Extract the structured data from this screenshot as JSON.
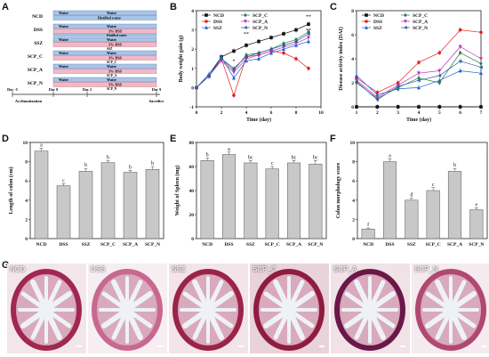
{
  "panels": {
    "A": "A",
    "B": "B",
    "C": "C",
    "D": "D",
    "E": "E",
    "F": "F",
    "G": "G"
  },
  "panelA": {
    "groups": [
      {
        "name": "NCD",
        "top": "Water",
        "bottom": "Distilled water",
        "topColor": "#a9c4e8",
        "bottomColor": "#a9c4e8"
      },
      {
        "name": "DSS",
        "top": "Water",
        "bottom": "3% DSS",
        "bottom2": "Distilled water",
        "topColor": "#a9c4e8",
        "bottomColor": "#f2b8c6"
      },
      {
        "name": "SSZ",
        "top": "Water",
        "bottom": "3% DSS",
        "bottom2": "SSZ",
        "topColor": "#a9c4e8",
        "bottomColor": "#f2b8c6"
      },
      {
        "name": "SCP_C",
        "top": "Water",
        "bottom": "3% DSS",
        "bottom2": "SCP_C",
        "topColor": "#a9c4e8",
        "bottomColor": "#f2b8c6"
      },
      {
        "name": "SCP_A",
        "top": "Water",
        "bottom": "3% DSS",
        "bottom2": "SCP_A",
        "topColor": "#a9c4e8",
        "bottomColor": "#f2b8c6"
      },
      {
        "name": "SCP_N",
        "top": "Water",
        "bottom": "3% DSS",
        "bottom2": "SCP_N",
        "topColor": "#a9c4e8",
        "bottomColor": "#f2b8c6"
      }
    ],
    "timeline": {
      "day_start": "Day -5",
      "day0": "Day 0",
      "day2": "Day 2",
      "day9": "Day 9",
      "acclimatization": "Acclimatization",
      "sacrifice": "Sacrifice"
    }
  },
  "chart_data": [
    {
      "panel": "B",
      "type": "line",
      "xlabel": "Time (day)",
      "ylabel": "Body weight gain (g)",
      "xlim": [
        0,
        10
      ],
      "ylim": [
        -1,
        4
      ],
      "xticks": [
        0,
        2,
        4,
        6,
        8,
        10
      ],
      "yticks": [
        -1,
        0,
        1,
        2,
        3,
        4
      ],
      "x": [
        0,
        1,
        2,
        3,
        4,
        5,
        6,
        7,
        8,
        9
      ],
      "series": [
        {
          "name": "NCD",
          "color": "#111111",
          "marker": "square",
          "values": [
            0,
            0.6,
            1.6,
            1.9,
            2.2,
            2.4,
            2.6,
            2.8,
            3.0,
            3.3
          ]
        },
        {
          "name": "DSS",
          "color": "#e02020",
          "marker": "circle",
          "values": [
            0,
            0.6,
            1.5,
            -0.4,
            1.6,
            1.7,
            1.9,
            1.8,
            1.5,
            1.0
          ]
        },
        {
          "name": "SSZ",
          "color": "#2060d0",
          "marker": "triangle",
          "values": [
            0,
            0.7,
            1.6,
            0.5,
            1.4,
            1.5,
            1.8,
            2.0,
            2.2,
            2.4
          ]
        },
        {
          "name": "SCP_C",
          "color": "#208040",
          "marker": "diamond",
          "values": [
            0,
            0.6,
            1.5,
            0.9,
            1.7,
            1.8,
            2.0,
            2.3,
            2.5,
            2.9
          ]
        },
        {
          "name": "SCP_A",
          "color": "#c030c0",
          "marker": "triangle-down",
          "values": [
            0,
            0.6,
            1.4,
            0.8,
            1.5,
            1.7,
            1.9,
            2.1,
            2.3,
            2.6
          ]
        },
        {
          "name": "SCP_N",
          "color": "#3060a0",
          "marker": "triangle-left",
          "values": [
            0,
            0.6,
            1.5,
            1.0,
            1.6,
            1.8,
            2.0,
            2.2,
            2.4,
            2.8
          ]
        }
      ],
      "annotations": [
        "**",
        "*",
        "**",
        "**"
      ]
    },
    {
      "panel": "C",
      "type": "line",
      "xlabel": "Time (day)",
      "ylabel": "Disease activity index (DAI)",
      "xlim": [
        1,
        7
      ],
      "ylim": [
        0,
        8
      ],
      "xticks": [
        1,
        2,
        3,
        4,
        5,
        6,
        7
      ],
      "yticks": [
        0,
        2,
        4,
        6,
        8
      ],
      "x": [
        1,
        2,
        3,
        4,
        5,
        6,
        7
      ],
      "series": [
        {
          "name": "NCD",
          "color": "#111111",
          "marker": "square",
          "values": [
            0,
            0,
            0,
            0,
            0,
            0,
            0
          ]
        },
        {
          "name": "DSS",
          "color": "#e02020",
          "marker": "circle",
          "values": [
            2.4,
            1.2,
            2.0,
            3.7,
            4.5,
            6.4,
            6.2
          ]
        },
        {
          "name": "SSZ",
          "color": "#2060d0",
          "marker": "triangle",
          "values": [
            2.6,
            1.0,
            1.5,
            1.6,
            2.2,
            3.0,
            2.8
          ]
        },
        {
          "name": "SCP_C",
          "color": "#208040",
          "marker": "diamond",
          "values": [
            2.0,
            0.7,
            1.6,
            2.4,
            2.0,
            4.5,
            3.6
          ]
        },
        {
          "name": "SCP_A",
          "color": "#c030c0",
          "marker": "triangle-down",
          "values": [
            2.2,
            0.8,
            1.8,
            2.8,
            3.0,
            5.0,
            4.0
          ]
        },
        {
          "name": "SCP_N",
          "color": "#3060a0",
          "marker": "triangle-left",
          "values": [
            2.1,
            0.6,
            1.7,
            2.2,
            2.6,
            3.8,
            3.3
          ]
        }
      ]
    },
    {
      "panel": "D",
      "type": "bar",
      "ylabel": "Length of colon (cm)",
      "ylim": [
        0,
        10
      ],
      "yticks": [
        0,
        2,
        4,
        6,
        8,
        10
      ],
      "categories": [
        "NCD",
        "DSS",
        "SSZ",
        "SCP_C",
        "SCP_A",
        "SCP_N"
      ],
      "values": [
        9.1,
        5.5,
        7.0,
        7.9,
        6.9,
        7.2
      ],
      "errors": [
        0.3,
        0.2,
        0.3,
        0.2,
        0.2,
        0.3
      ],
      "letters": [
        "a",
        "c",
        "b",
        "b",
        "b",
        "b"
      ]
    },
    {
      "panel": "E",
      "type": "bar",
      "ylabel": "Weight of Spleen (mg)",
      "ylim": [
        0,
        80
      ],
      "yticks": [
        0,
        20,
        40,
        60,
        80
      ],
      "categories": [
        "NCD",
        "DSS",
        "SSZ",
        "SCP_C",
        "SCP_A",
        "SCP_N"
      ],
      "values": [
        65,
        70,
        63,
        58,
        63,
        62
      ],
      "errors": [
        2,
        2,
        2,
        2,
        2,
        3
      ],
      "letters": [
        "b",
        "a",
        "bc",
        "c",
        "bc",
        "bc"
      ]
    },
    {
      "panel": "F",
      "type": "bar",
      "ylabel": "Colon morphology score",
      "ylim": [
        0,
        10
      ],
      "yticks": [
        0,
        2,
        4,
        6,
        8,
        10
      ],
      "categories": [
        "NCD",
        "DSS",
        "SSZ",
        "SCP_C",
        "SCP_A",
        "SCP_N"
      ],
      "values": [
        1.0,
        8.0,
        4.0,
        5.0,
        7.0,
        3.0
      ],
      "errors": [
        0.1,
        0.3,
        0.2,
        0.3,
        0.3,
        0.2
      ],
      "letters": [
        "f",
        "a",
        "d",
        "c",
        "b",
        "e"
      ]
    }
  ],
  "histology": {
    "labels": [
      "NCD",
      "DSS",
      "SSZ",
      "SCP_C",
      "SCP_A",
      "SCP_N"
    ],
    "bg": [
      "#f3e6ea",
      "#f6eef1",
      "#f2e4e8",
      "#e9d3da",
      "#f0e2e6",
      "#f5eaee"
    ],
    "tissue": [
      "#a02850",
      "#c86890",
      "#9a2448",
      "#8f1c40",
      "#6a1848",
      "#b04870"
    ]
  }
}
